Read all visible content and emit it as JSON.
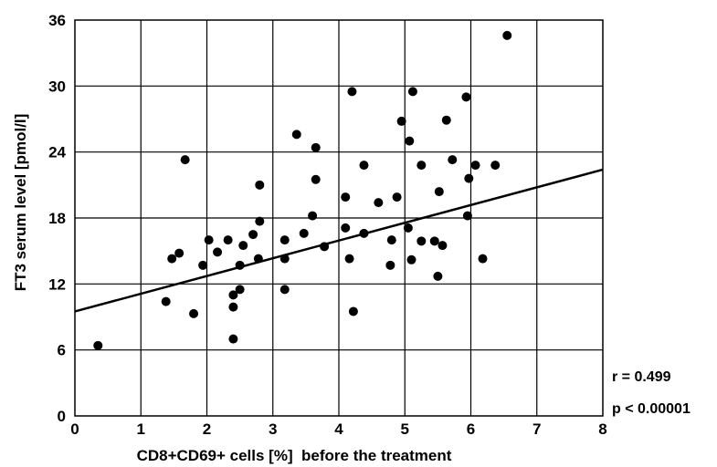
{
  "chart_data": {
    "type": "scatter",
    "xlabel": "CD8+CD69+ cells [%]  before the treatment",
    "ylabel": "FT3 serum level [pmol/l]",
    "xlim": [
      0,
      8
    ],
    "ylim": [
      0,
      36
    ],
    "x_ticks": [
      0,
      1,
      2,
      3,
      4,
      5,
      6,
      7,
      8
    ],
    "y_ticks": [
      0,
      6,
      12,
      18,
      24,
      30,
      36
    ],
    "grid": true,
    "trendline": {
      "x": [
        0,
        8
      ],
      "y": [
        9.5,
        22.4
      ]
    },
    "annotations": [
      "r = 0.499",
      "p < 0.00001"
    ],
    "points": [
      [
        0.35,
        6.4
      ],
      [
        1.38,
        10.4
      ],
      [
        1.47,
        14.3
      ],
      [
        1.58,
        14.8
      ],
      [
        1.67,
        23.3
      ],
      [
        1.8,
        9.3
      ],
      [
        1.94,
        13.7
      ],
      [
        2.03,
        16.0
      ],
      [
        2.16,
        14.9
      ],
      [
        2.32,
        16.0
      ],
      [
        2.4,
        11.0
      ],
      [
        2.4,
        9.9
      ],
      [
        2.4,
        7.0
      ],
      [
        2.5,
        13.7
      ],
      [
        2.5,
        11.5
      ],
      [
        2.55,
        15.5
      ],
      [
        2.7,
        16.5
      ],
      [
        2.78,
        14.3
      ],
      [
        2.8,
        17.7
      ],
      [
        2.8,
        21.0
      ],
      [
        3.18,
        16.0
      ],
      [
        3.18,
        14.3
      ],
      [
        3.18,
        11.5
      ],
      [
        3.36,
        25.6
      ],
      [
        3.47,
        16.6
      ],
      [
        3.6,
        18.2
      ],
      [
        3.65,
        24.4
      ],
      [
        3.65,
        21.5
      ],
      [
        3.78,
        15.4
      ],
      [
        4.1,
        17.1
      ],
      [
        4.1,
        19.9
      ],
      [
        4.16,
        14.3
      ],
      [
        4.2,
        29.5
      ],
      [
        4.22,
        9.5
      ],
      [
        4.38,
        22.8
      ],
      [
        4.38,
        16.6
      ],
      [
        4.6,
        19.4
      ],
      [
        4.78,
        13.7
      ],
      [
        4.8,
        16.0
      ],
      [
        4.88,
        19.9
      ],
      [
        4.95,
        26.8
      ],
      [
        5.05,
        17.1
      ],
      [
        5.07,
        25.0
      ],
      [
        5.1,
        14.2
      ],
      [
        5.12,
        29.5
      ],
      [
        5.25,
        22.8
      ],
      [
        5.25,
        15.9
      ],
      [
        5.45,
        15.9
      ],
      [
        5.5,
        12.7
      ],
      [
        5.52,
        20.4
      ],
      [
        5.57,
        15.5
      ],
      [
        5.63,
        26.9
      ],
      [
        5.72,
        23.3
      ],
      [
        5.93,
        29.0
      ],
      [
        5.95,
        18.2
      ],
      [
        5.97,
        21.6
      ],
      [
        6.07,
        22.8
      ],
      [
        6.18,
        14.3
      ],
      [
        6.37,
        22.8
      ],
      [
        6.55,
        34.6
      ]
    ]
  }
}
